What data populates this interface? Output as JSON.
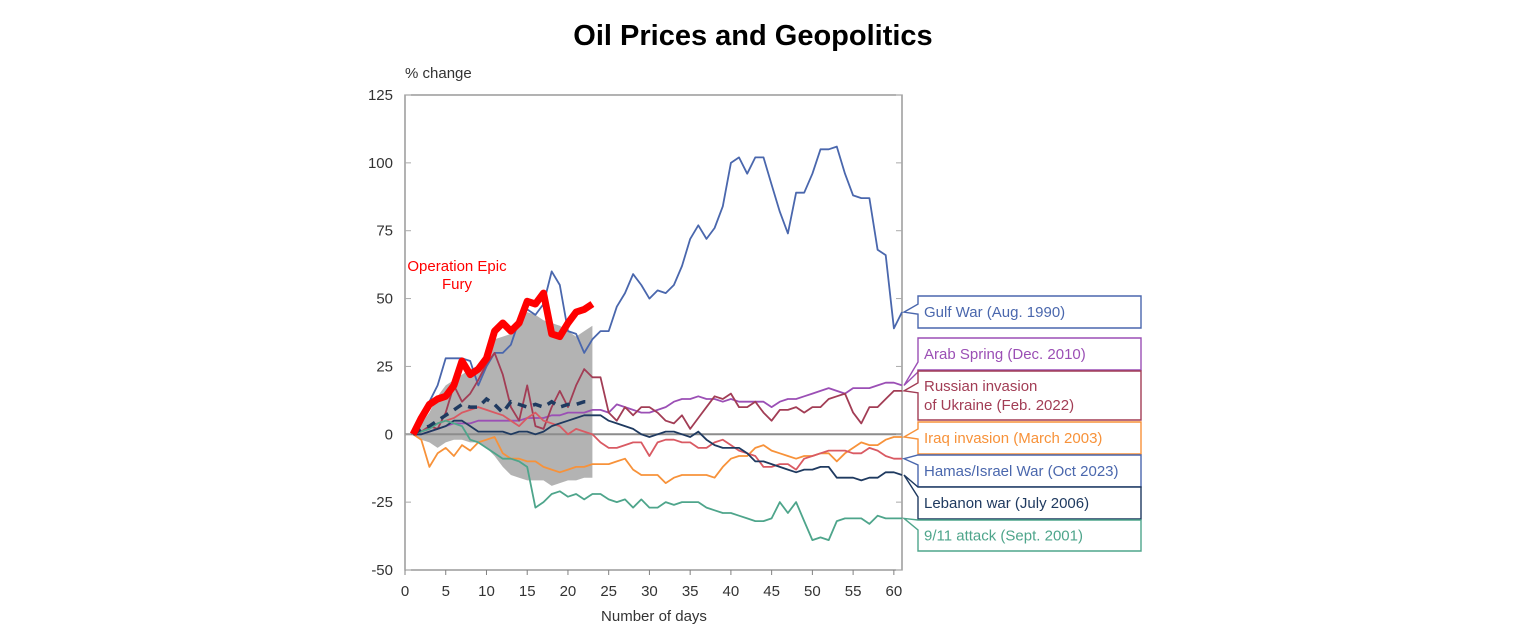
{
  "chart_data": {
    "type": "line",
    "title": "Oil Prices and Geopolitics",
    "ylabel": "% change",
    "xlabel": "Number of days",
    "xlim": [
      0,
      61
    ],
    "ylim": [
      -50,
      125
    ],
    "xticks": [
      0,
      5,
      10,
      15,
      20,
      25,
      30,
      35,
      40,
      45,
      50,
      55,
      60
    ],
    "yticks": [
      -50,
      -25,
      0,
      25,
      50,
      75,
      100,
      125
    ],
    "grid": false,
    "legend": "right (callout labels)",
    "annotation": "Operation Epic Fury",
    "series": [
      {
        "name": "Gulf War (Aug. 1990)",
        "color": "#4a67ad",
        "x_start": 1,
        "values": [
          0,
          5,
          12,
          18,
          28,
          28,
          28,
          27,
          18,
          25,
          30,
          30,
          33,
          42,
          46,
          44,
          48,
          60,
          55,
          38,
          37,
          30,
          35,
          38,
          38,
          47,
          52,
          59,
          55,
          50,
          53,
          52,
          55,
          62,
          72,
          77,
          72,
          76,
          84,
          100,
          102,
          96,
          102,
          102,
          92,
          82,
          74,
          89,
          89,
          96,
          105,
          105,
          106,
          96,
          88,
          87,
          87,
          68,
          66,
          39,
          45
        ]
      },
      {
        "name": "Arab Spring (Dec. 2010)",
        "color": "#9b4fb5",
        "x_start": 1,
        "values": [
          0,
          0,
          1,
          2,
          3,
          4,
          4,
          4,
          5,
          5,
          5,
          5,
          5,
          5,
          6,
          6,
          6,
          7,
          7,
          8,
          8,
          8,
          9,
          9,
          8,
          11,
          10,
          9,
          8,
          8,
          9,
          10,
          12,
          13,
          13,
          14,
          13,
          13,
          12,
          13,
          12,
          12,
          12,
          12,
          10,
          12,
          13,
          13,
          14,
          15,
          16,
          17,
          16,
          15,
          17,
          17,
          17,
          18,
          19,
          19,
          18
        ]
      },
      {
        "name": "Russian invasion of Ukraine (Feb. 2022)",
        "lines": [
          "Russian invasion",
          "of Ukraine (Feb. 2022)"
        ],
        "color": "#a23d55",
        "x_start": 1,
        "values": [
          0,
          1,
          3,
          2,
          8,
          18,
          12,
          15,
          20,
          26,
          30,
          22,
          10,
          5,
          18,
          3,
          2,
          10,
          16,
          10,
          18,
          24,
          21,
          21,
          8,
          5,
          10,
          7,
          10,
          10,
          8,
          5,
          4,
          7,
          2,
          6,
          10,
          14,
          13,
          15,
          10,
          10,
          12,
          8,
          5,
          9,
          9,
          10,
          8,
          10,
          10,
          13,
          14,
          15,
          8,
          4,
          10,
          10,
          13,
          16,
          16
        ]
      },
      {
        "name": "Iraq invasion (March 2003)",
        "color": "#f7923a",
        "x_start": 1,
        "values": [
          0,
          -2,
          -12,
          -7,
          -5,
          -8,
          -4,
          -6,
          -3,
          -2,
          -1,
          -7,
          -9,
          -9,
          -10,
          -10,
          -12,
          -13,
          -14,
          -13,
          -12,
          -12,
          -11,
          -11,
          -11,
          -10,
          -9,
          -13,
          -15,
          -15,
          -15,
          -18,
          -16,
          -15,
          -15,
          -15,
          -15,
          -16,
          -12,
          -9,
          -8,
          -8,
          -5,
          -4,
          -6,
          -7,
          -8,
          -9,
          -8,
          -8,
          -7,
          -7,
          -10,
          -7,
          -5,
          -3,
          -4,
          -4,
          -2,
          -1,
          -1
        ]
      },
      {
        "name": "Hamas/Israel War (Oct 2023)",
        "color": "#4a67ad",
        "line_color": "#d95a63",
        "x_start": 1,
        "values": [
          0,
          1,
          2,
          4,
          5,
          6,
          8,
          9,
          10,
          9,
          8,
          7,
          5,
          3,
          6,
          8,
          5,
          4,
          3,
          0,
          2,
          1,
          0,
          -3,
          -5,
          -5,
          -4,
          -3,
          -3,
          -8,
          -3,
          -2,
          -2,
          -3,
          -3,
          -5,
          -5,
          -3,
          -2,
          -4,
          -6,
          -7,
          -8,
          -12,
          -12,
          -11,
          -11,
          -13,
          -9,
          -8,
          -7,
          -6,
          -6,
          -6,
          -7,
          -7,
          -5,
          -6,
          -8,
          -9,
          -9
        ]
      },
      {
        "name": "Lebanon war (July 2006)",
        "color": "#1f3a60",
        "x_start": 1,
        "values": [
          0,
          0,
          1,
          2,
          3,
          5,
          5,
          3,
          1,
          1,
          1,
          1,
          0,
          1,
          1,
          0,
          1,
          3,
          4,
          5,
          6,
          7,
          7,
          7,
          5,
          4,
          3,
          2,
          0,
          -1,
          0,
          1,
          1,
          0,
          -1,
          1,
          -2,
          -4,
          -5,
          -5,
          -5,
          -7,
          -10,
          -10,
          -11,
          -12,
          -13,
          -14,
          -13,
          -13,
          -12,
          -12,
          -16,
          -16,
          -16,
          -17,
          -16,
          -16,
          -14,
          -14,
          -15
        ]
      },
      {
        "name": "9/11 attack (Sept. 2001)",
        "color": "#4ea58b",
        "x_start": 1,
        "values": [
          0,
          1,
          2,
          4,
          5,
          4,
          3,
          -2,
          -3,
          -5,
          -7,
          -9,
          -9,
          -10,
          -12,
          -27,
          -25,
          -22,
          -21,
          -23,
          -22,
          -24,
          -22,
          -22,
          -24,
          -25,
          -24,
          -27,
          -24,
          -27,
          -27,
          -25,
          -26,
          -25,
          -25,
          -25,
          -27,
          -28,
          -29,
          -29,
          -30,
          -31,
          -32,
          -32,
          -31,
          -25,
          -29,
          -25,
          -32,
          -39,
          -38,
          -39,
          -32,
          -31,
          -31,
          -31,
          -33,
          -30,
          -31,
          -31,
          -31
        ]
      }
    ],
    "operation_epic_fury": {
      "name": "Operation Epic Fury",
      "color": "#ff0000",
      "x_start": 1,
      "values": [
        0,
        6,
        11,
        13,
        14,
        18,
        27,
        22,
        24,
        28,
        38,
        41,
        38,
        41,
        49,
        48,
        52,
        37,
        36,
        41,
        45,
        46,
        48
      ]
    },
    "average": {
      "color": "#1f3a60",
      "style": "dashed",
      "x_start": 1,
      "values": [
        0,
        2,
        3,
        5,
        7,
        9,
        11,
        10,
        10,
        13,
        11,
        8,
        12,
        11,
        10,
        11,
        10,
        12,
        10,
        11,
        11,
        12,
        12
      ]
    },
    "range_band": {
      "color": "#b3b3b3",
      "x_start": 1,
      "upper": [
        0,
        4,
        8,
        14,
        18,
        20,
        22,
        24,
        25,
        30,
        35,
        36,
        37,
        42,
        45,
        44,
        42,
        41,
        40,
        38,
        36,
        38,
        40
      ],
      "lower": [
        0,
        -2,
        -3,
        -5,
        -3,
        -2,
        -2,
        -3,
        -3,
        -5,
        -8,
        -12,
        -15,
        -16,
        -17,
        -17,
        -17,
        -19,
        -18,
        -17,
        -17,
        -16,
        -16
      ]
    }
  }
}
